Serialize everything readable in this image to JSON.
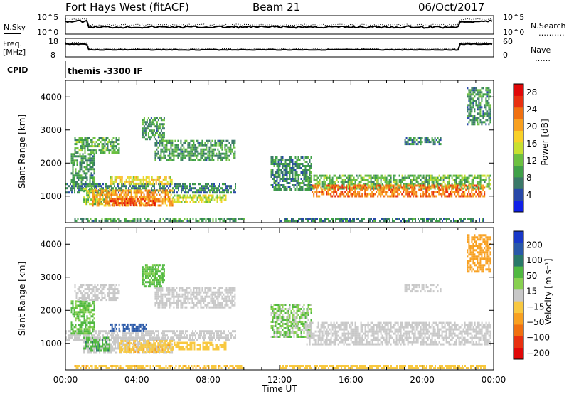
{
  "header": {
    "title": "Fort Hays West (fitACF)",
    "beam": "Beam 21",
    "date": "06/Oct/2017"
  },
  "strips": {
    "noise_sky_label": "N.Sky",
    "noise_search_label": "N.Search",
    "noise_search_legend": "……….",
    "noise_left_ticks": [
      "10^5",
      "10^0"
    ],
    "noise_right_ticks": [
      "10^5",
      "10^0"
    ],
    "freq_label": "Freq.",
    "freq_unit": "[MHz]",
    "freq_ticks": [
      "18",
      "8"
    ],
    "nave_label": "Nave",
    "nave_legend": "……",
    "nave_ticks": [
      "60",
      "0"
    ],
    "cpid_label": "CPID",
    "cpid_text": "themis -3300 IF"
  },
  "chart_data": [
    {
      "type": "heatmap",
      "name": "power",
      "ylabel": "Slant Range [km]",
      "xlabel": "Time UT",
      "xlim": [
        0,
        24
      ],
      "ylim": [
        200,
        4500
      ],
      "xticks": [
        "00:00",
        "04:00",
        "08:00",
        "12:00",
        "16:00",
        "20:00",
        "00:00"
      ],
      "yticks": [
        "1000",
        "2000",
        "3000",
        "4000"
      ],
      "colorbar": {
        "label": "Power [dB]",
        "ticks": [
          "4",
          "8",
          "12",
          "16",
          "20",
          "24",
          "28"
        ],
        "colors": [
          "#1020e8",
          "#2848a8",
          "#3a7868",
          "#40a048",
          "#6cc040",
          "#c8e030",
          "#f8d028",
          "#f8a020",
          "#f07010",
          "#e83010",
          "#e00808"
        ]
      },
      "regions": [
        {
          "t": [
            0.0,
            9.5
          ],
          "r": [
            1100,
            1400
          ],
          "v": 8
        },
        {
          "t": [
            0.3,
            1.6
          ],
          "r": [
            1300,
            2300
          ],
          "v": 10
        },
        {
          "t": [
            0.5,
            3.0
          ],
          "r": [
            2300,
            2800
          ],
          "v": 11
        },
        {
          "t": [
            1.0,
            2.5
          ],
          "r": [
            750,
            1250
          ],
          "v": 14
        },
        {
          "t": [
            1.5,
            6.0
          ],
          "r": [
            700,
            1200
          ],
          "v": 22
        },
        {
          "t": [
            2.5,
            5.0
          ],
          "r": [
            700,
            950
          ],
          "v": 26
        },
        {
          "t": [
            6.0,
            9.0
          ],
          "r": [
            850,
            1050
          ],
          "v": 16
        },
        {
          "t": [
            2.5,
            6.0
          ],
          "r": [
            1350,
            1600
          ],
          "v": 18
        },
        {
          "t": [
            5.0,
            9.5
          ],
          "r": [
            2100,
            2700
          ],
          "v": 10
        },
        {
          "t": [
            4.3,
            5.5
          ],
          "r": [
            2700,
            3400
          ],
          "v": 10
        },
        {
          "t": [
            0.5,
            10.0
          ],
          "r": [
            250,
            350
          ],
          "v": 10
        },
        {
          "t": [
            11.5,
            13.8
          ],
          "r": [
            1200,
            2200
          ],
          "v": 9
        },
        {
          "t": [
            13.5,
            23.8
          ],
          "r": [
            1200,
            1650
          ],
          "v": 12
        },
        {
          "t": [
            13.8,
            23.5
          ],
          "r": [
            1000,
            1350
          ],
          "v": 24
        },
        {
          "t": [
            12.0,
            23.5
          ],
          "r": [
            250,
            350
          ],
          "v": 8
        },
        {
          "t": [
            19.0,
            21.0
          ],
          "r": [
            2600,
            2800
          ],
          "v": 8
        },
        {
          "t": [
            22.5,
            23.8
          ],
          "r": [
            3200,
            4300
          ],
          "v": 9
        }
      ]
    },
    {
      "type": "heatmap",
      "name": "velocity",
      "ylabel": "Slant Range [km]",
      "xlabel": "Time UT",
      "xlim": [
        0,
        24
      ],
      "ylim": [
        200,
        4500
      ],
      "xticks": [
        "00:00",
        "04:00",
        "08:00",
        "12:00",
        "16:00",
        "20:00",
        "00:00"
      ],
      "yticks": [
        "1000",
        "2000",
        "3000",
        "4000"
      ],
      "colorbar": {
        "label": "Velocity [m s⁻¹]",
        "ticks": [
          "200",
          "100",
          "50",
          "15",
          "−15",
          "−50",
          "−100",
          "−200"
        ],
        "colors": [
          "#1838c8",
          "#2858a8",
          "#287868",
          "#50b840",
          "#88d050",
          "#c8c8c8",
          "#f8c840",
          "#f8a020",
          "#f07010",
          "#e83010",
          "#e00808"
        ]
      },
      "regions": [
        {
          "t": [
            0.0,
            9.5
          ],
          "r": [
            1100,
            1400
          ],
          "v": 0
        },
        {
          "t": [
            0.3,
            1.6
          ],
          "r": [
            1300,
            2300
          ],
          "v": 30
        },
        {
          "t": [
            0.5,
            3.0
          ],
          "r": [
            2300,
            2800
          ],
          "v": 0
        },
        {
          "t": [
            1.0,
            6.0
          ],
          "r": [
            700,
            1200
          ],
          "v": 0
        },
        {
          "t": [
            1.0,
            2.5
          ],
          "r": [
            750,
            1200
          ],
          "v": 40
        },
        {
          "t": [
            3.0,
            6.0
          ],
          "r": [
            750,
            1100
          ],
          "v": -40
        },
        {
          "t": [
            2.5,
            4.5
          ],
          "r": [
            1350,
            1600
          ],
          "v": 150
        },
        {
          "t": [
            6.0,
            9.0
          ],
          "r": [
            850,
            1050
          ],
          "v": -30
        },
        {
          "t": [
            5.0,
            9.5
          ],
          "r": [
            2100,
            2700
          ],
          "v": 0
        },
        {
          "t": [
            4.3,
            5.5
          ],
          "r": [
            2700,
            3400
          ],
          "v": 30
        },
        {
          "t": [
            0.5,
            10.0
          ],
          "r": [
            250,
            350
          ],
          "v": -40
        },
        {
          "t": [
            11.5,
            13.8
          ],
          "r": [
            1200,
            2200
          ],
          "v": 20
        },
        {
          "t": [
            13.5,
            23.8
          ],
          "r": [
            1000,
            1650
          ],
          "v": 0
        },
        {
          "t": [
            12.0,
            23.5
          ],
          "r": [
            250,
            350
          ],
          "v": -30
        },
        {
          "t": [
            19.0,
            21.0
          ],
          "r": [
            2600,
            2800
          ],
          "v": 0
        },
        {
          "t": [
            22.5,
            23.8
          ],
          "r": [
            3200,
            4300
          ],
          "v": -80
        }
      ]
    }
  ]
}
